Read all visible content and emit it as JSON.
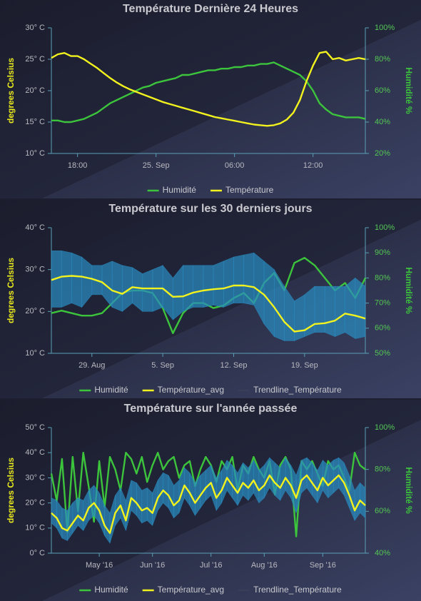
{
  "chart_data": [
    {
      "type": "line",
      "title": "Température Dernière 24 Heures",
      "y_label": "degrees Celsius",
      "y2_label": "Humidité %",
      "categories": [
        null,
        null,
        null,
        null,
        "18:00",
        null,
        null,
        null,
        null,
        null,
        null,
        null,
        null,
        null,
        null,
        null,
        "25. Sep",
        null,
        null,
        null,
        null,
        null,
        null,
        null,
        null,
        null,
        null,
        null,
        "06:00",
        null,
        null,
        null,
        null,
        null,
        null,
        null,
        null,
        null,
        null,
        null,
        "12:00",
        null,
        null,
        null,
        null,
        null,
        null,
        null,
        null
      ],
      "ylim": [
        10,
        30
      ],
      "yticks": [
        {
          "value": 10,
          "label": "10° C"
        },
        {
          "value": 15,
          "label": "15° C"
        },
        {
          "value": 20,
          "label": "20° C"
        },
        {
          "value": 25,
          "label": "25° C"
        },
        {
          "value": 30,
          "label": "30° C"
        }
      ],
      "y2lim": [
        20,
        100
      ],
      "y2ticks": [
        {
          "value": 20,
          "label": "20%"
        },
        {
          "value": 40,
          "label": "40%"
        },
        {
          "value": 60,
          "label": "60%"
        },
        {
          "value": 80,
          "label": "80%"
        },
        {
          "value": 100,
          "label": "100%"
        }
      ],
      "series": [
        {
          "name": "Humidité",
          "color": "#3cc43c",
          "axis": "y2",
          "values": [
            41,
            41,
            40,
            40,
            41,
            42,
            44,
            46,
            49,
            52,
            54,
            56,
            58,
            60,
            62,
            63,
            65,
            66,
            67,
            68,
            70,
            70,
            71,
            72,
            73,
            73,
            74,
            74,
            75,
            75,
            76,
            76,
            77,
            77,
            78,
            76,
            74,
            72,
            70,
            66,
            60,
            52,
            48,
            45,
            44,
            43,
            43,
            43,
            42
          ]
        },
        {
          "name": "Température",
          "color": "#f2f21e",
          "values": [
            25.2,
            25.8,
            26.0,
            25.5,
            25.5,
            25.0,
            24.3,
            23.6,
            22.8,
            22.0,
            21.3,
            20.7,
            20.2,
            19.8,
            19.4,
            19.0,
            18.6,
            18.2,
            17.9,
            17.6,
            17.3,
            17.0,
            16.7,
            16.4,
            16.1,
            15.8,
            15.6,
            15.4,
            15.2,
            15.0,
            14.8,
            14.6,
            14.5,
            14.4,
            14.5,
            14.8,
            15.4,
            16.5,
            18.5,
            21.5,
            24.0,
            26.0,
            26.2,
            25.0,
            25.2,
            24.8,
            25.0,
            25.2,
            25.0
          ]
        }
      ]
    },
    {
      "type": "line",
      "title": "Température sur les 30 derniers jours",
      "y_label": "degrees Celsius",
      "y2_label": "Humidité %",
      "categories": [
        null,
        null,
        null,
        null,
        "29. Aug",
        null,
        null,
        null,
        null,
        null,
        null,
        "5. Sep",
        null,
        null,
        null,
        null,
        null,
        null,
        "12. Sep",
        null,
        null,
        null,
        null,
        null,
        null,
        "19. Sep",
        null,
        null,
        null,
        null,
        null,
        null
      ],
      "ylim": [
        10,
        40
      ],
      "yticks": [
        {
          "value": 10,
          "label": "10° C"
        },
        {
          "value": 20,
          "label": "20° C"
        },
        {
          "value": 30,
          "label": "30° C"
        },
        {
          "value": 40,
          "label": "40° C"
        }
      ],
      "y2lim": [
        50,
        100
      ],
      "y2ticks": [
        {
          "value": 50,
          "label": "50%"
        },
        {
          "value": 60,
          "label": "60%"
        },
        {
          "value": 70,
          "label": "70%"
        },
        {
          "value": 80,
          "label": "80%"
        },
        {
          "value": 90,
          "label": "90%"
        },
        {
          "value": 100,
          "label": "100%"
        }
      ],
      "series": [
        {
          "name": "Humidité",
          "color": "#3cc43c",
          "axis": "y2",
          "values": [
            66,
            67,
            66,
            65,
            65,
            66,
            70,
            74,
            75,
            75,
            74,
            68,
            58,
            66,
            70,
            70,
            68,
            69,
            72,
            74,
            70,
            78,
            82,
            75,
            86,
            88,
            85,
            80,
            75,
            78,
            72,
            80
          ]
        },
        {
          "name": "Température_avg",
          "color": "#f2f21e",
          "values": [
            27.5,
            28.3,
            28.5,
            28.3,
            27.8,
            27,
            25,
            24.2,
            25.8,
            25.5,
            25.5,
            25.5,
            23.5,
            23.6,
            24.5,
            25,
            25.3,
            25.5,
            26.2,
            26.2,
            25.8,
            24,
            21,
            17.5,
            15.2,
            15.5,
            17,
            17.2,
            17.8,
            19.5,
            19,
            18.3
          ],
          "band": {
            "color": "#2a8cc0",
            "high": [
              34.5,
              34.5,
              34,
              33,
              31,
              31,
              32,
              31,
              30.5,
              29,
              30,
              31,
              28,
              31,
              31,
              31,
              31,
              32,
              33,
              33.5,
              34,
              32,
              30,
              26,
              22.5,
              24,
              26,
              26,
              26,
              26,
              28,
              26
            ],
            "low": [
              21,
              21,
              22,
              21,
              24,
              24,
              21,
              20,
              22,
              20,
              20,
              21,
              18,
              20,
              21,
              21,
              21.5,
              21,
              22,
              22,
              21.5,
              17,
              14,
              13,
              13,
              14,
              15,
              15,
              14,
              15,
              13.5,
              14
            ]
          }
        },
        {
          "name": "Trendline_Température",
          "color": "#3a3d58",
          "visible": false
        }
      ]
    },
    {
      "type": "line",
      "title": "Température sur l'année passée",
      "y_label": "degrees Celsius",
      "y2_label": "Humidité %",
      "categories": [
        null,
        null,
        null,
        null,
        null,
        null,
        null,
        null,
        null,
        "May '16",
        null,
        null,
        null,
        null,
        null,
        null,
        null,
        null,
        null,
        "Jun '16",
        null,
        null,
        null,
        null,
        null,
        null,
        null,
        null,
        null,
        null,
        "Jul '16",
        null,
        null,
        null,
        null,
        null,
        null,
        null,
        null,
        null,
        "Aug '16",
        null,
        null,
        null,
        null,
        null,
        null,
        null,
        null,
        null,
        null,
        "Sep '16",
        null,
        null,
        null,
        null,
        null,
        null,
        null,
        null
      ],
      "ylim": [
        0,
        50
      ],
      "yticks": [
        {
          "value": 0,
          "label": "0° C"
        },
        {
          "value": 10,
          "label": "10° C"
        },
        {
          "value": 20,
          "label": "20° C"
        },
        {
          "value": 30,
          "label": "30° C"
        },
        {
          "value": 40,
          "label": "40° C"
        },
        {
          "value": 50,
          "label": "50° C"
        }
      ],
      "y2lim": [
        40,
        100
      ],
      "y2ticks": [
        {
          "value": 40,
          "label": "40%"
        },
        {
          "value": 60,
          "label": "60%"
        },
        {
          "value": 80,
          "label": "80%"
        },
        {
          "value": 100,
          "label": "100%"
        }
      ],
      "series": [
        {
          "name": "Humidité",
          "color": "#3cc43c",
          "axis": "y2",
          "values": [
            78,
            65,
            85,
            50,
            86,
            60,
            88,
            72,
            55,
            84,
            62,
            86,
            80,
            70,
            88,
            85,
            78,
            86,
            74,
            82,
            88,
            80,
            84,
            86,
            76,
            82,
            84,
            72,
            80,
            86,
            82,
            74,
            84,
            80,
            86,
            70,
            82,
            78,
            86,
            80,
            76,
            84,
            68,
            82,
            86,
            80,
            48,
            84,
            80,
            84,
            78,
            72,
            84,
            80,
            82,
            76,
            70,
            88,
            82,
            80
          ]
        },
        {
          "name": "Température_avg",
          "color": "#f2f21e",
          "values": [
            16,
            14,
            10,
            9,
            12,
            15,
            13,
            18,
            20,
            17,
            11,
            8,
            16,
            19,
            13,
            22,
            20,
            17,
            18,
            16,
            22,
            25,
            23,
            19,
            21,
            27,
            24,
            20,
            23,
            26,
            28,
            22,
            25,
            30,
            27,
            24,
            28,
            26,
            29,
            25,
            27,
            31,
            28,
            26,
            30,
            27,
            22,
            29,
            31,
            28,
            25,
            30,
            27,
            29,
            31,
            28,
            23,
            17,
            21,
            19
          ],
          "band": {
            "color": "#2a8cc0",
            "high": [
              22,
              21,
              18,
              17,
              20,
              22,
              21,
              25,
              27,
              24,
              19,
              16,
              23,
              26,
              21,
              29,
              28,
              25,
              26,
              24,
              29,
              32,
              31,
              27,
              29,
              34,
              32,
              28,
              31,
              33,
              35,
              30,
              33,
              37,
              35,
              32,
              36,
              34,
              37,
              33,
              35,
              38,
              36,
              34,
              38,
              35,
              31,
              37,
              38,
              36,
              33,
              37,
              35,
              37,
              38,
              36,
              31,
              25,
              28,
              26
            ],
            "low": [
              12,
              10,
              6,
              5,
              8,
              11,
              9,
              13,
              15,
              12,
              7,
              4,
              11,
              14,
              9,
              17,
              15,
              12,
              13,
              11,
              17,
              20,
              18,
              14,
              16,
              22,
              19,
              15,
              18,
              21,
              23,
              17,
              20,
              25,
              22,
              19,
              23,
              21,
              24,
              20,
              22,
              26,
              23,
              21,
              25,
              22,
              16,
              24,
              26,
              23,
              20,
              25,
              22,
              24,
              26,
              23,
              18,
              13,
              16,
              14
            ]
          }
        },
        {
          "name": "Trendline_Température",
          "color": "#3a3d58",
          "visible": false
        }
      ]
    }
  ]
}
